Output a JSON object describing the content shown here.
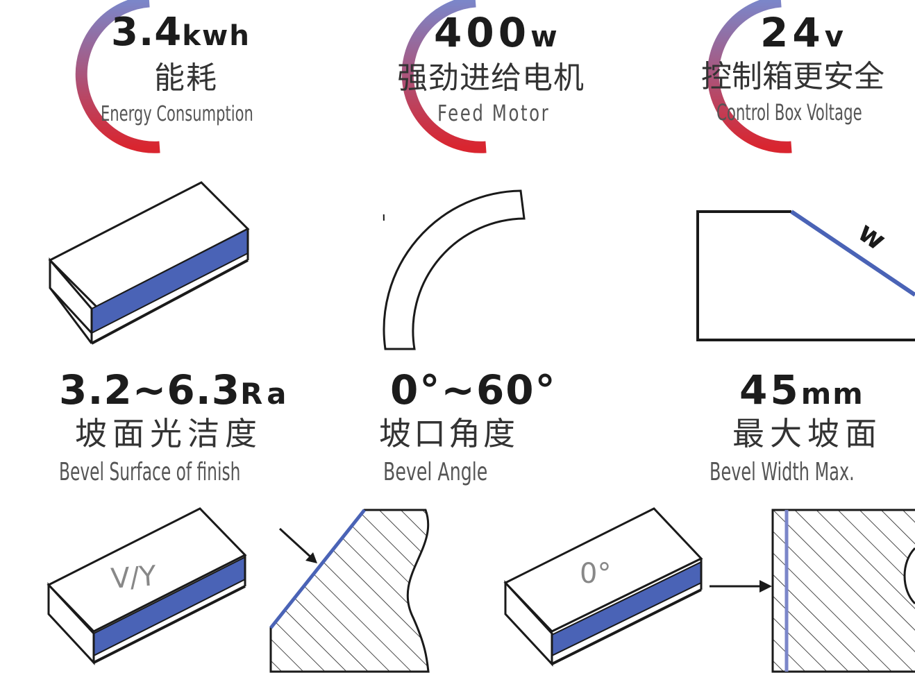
{
  "specs_top": [
    {
      "value": "3.4",
      "unit": "kwh",
      "cn": "能耗",
      "en": "Energy Consumption"
    },
    {
      "value": "400",
      "unit": "w",
      "cn": "强劲进给电机",
      "en": "Feed Motor"
    },
    {
      "value": "24",
      "unit": "v",
      "cn": "控制箱更安全",
      "en": "Control Box Voltage"
    }
  ],
  "specs_mid": [
    {
      "value": "3.2~6.3",
      "unit": "Ra",
      "cn": "坡面光洁度",
      "en": "Bevel Surface of finish"
    },
    {
      "value": "0°~60°",
      "unit": "",
      "cn": "坡口角度",
      "en": "Bevel Angle"
    },
    {
      "value": "45",
      "unit": "mm",
      "cn": "最大坡面",
      "en": "Bevel Width Max."
    }
  ],
  "diagrams": {
    "vy_label": "V/Y",
    "zero_label": "0°",
    "width_label": "w"
  },
  "colors": {
    "bevel_blue": "#4a63b6",
    "gauge_red": "#d9252f",
    "gauge_violet": "#7b86c9",
    "line": "#1a1a1a"
  }
}
